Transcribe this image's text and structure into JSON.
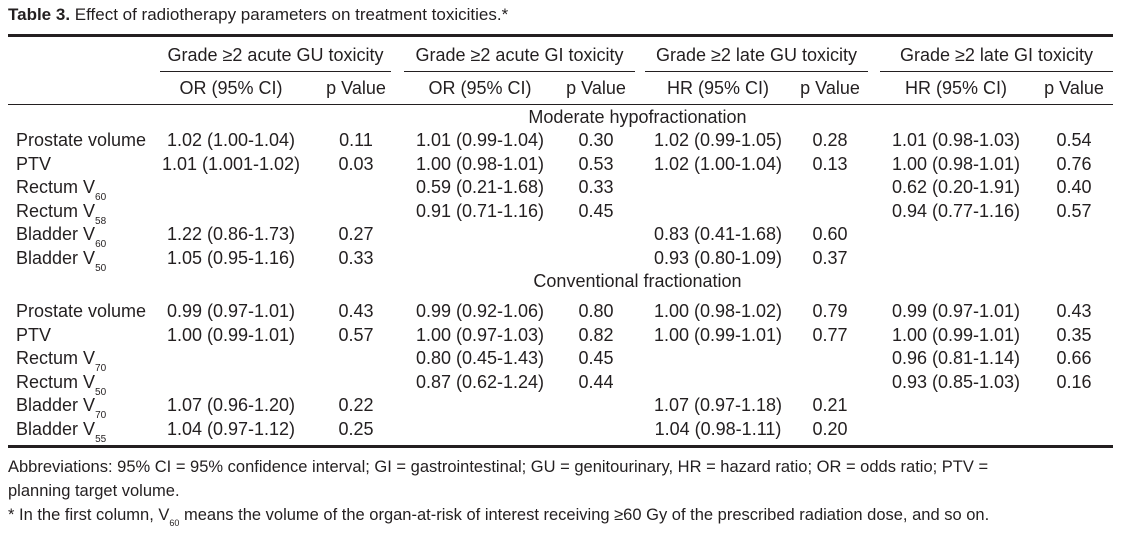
{
  "caption": {
    "label": "Table 3.",
    "text": "Effect of radiotherapy parameters on treatment toxicities.*"
  },
  "header": {
    "groups": [
      "Grade ≥2 acute GU toxicity",
      "Grade ≥2 acute GI toxicity",
      "Grade ≥2 late GU toxicity",
      "Grade ≥2 late GI toxicity"
    ],
    "subcols": [
      "OR (95% CI)",
      "p Value",
      "OR (95% CI)",
      "p Value",
      "HR (95% CI)",
      "p Value",
      "HR (95% CI)",
      "p Value"
    ]
  },
  "sections": [
    {
      "title": "Moderate hypofractionation",
      "rows": [
        {
          "name": "Prostate volume",
          "sub": "",
          "cells": [
            "1.02 (1.00-1.04)",
            "0.11",
            "1.01 (0.99-1.04)",
            "0.30",
            "1.02 (0.99-1.05)",
            "0.28",
            "1.01 (0.98-1.03)",
            "0.54"
          ]
        },
        {
          "name": "PTV",
          "sub": "",
          "cells": [
            "1.01 (1.001-1.02)",
            "0.03",
            "1.00 (0.98-1.01)",
            "0.53",
            "1.02 (1.00-1.04)",
            "0.13",
            "1.00 (0.98-1.01)",
            "0.76"
          ]
        },
        {
          "name": "Rectum V",
          "sub": "60",
          "cells": [
            "",
            "",
            "0.59 (0.21-1.68)",
            "0.33",
            "",
            "",
            "0.62 (0.20-1.91)",
            "0.40"
          ]
        },
        {
          "name": "Rectum V",
          "sub": "58",
          "cells": [
            "",
            "",
            "0.91 (0.71-1.16)",
            "0.45",
            "",
            "",
            "0.94 (0.77-1.16)",
            "0.57"
          ]
        },
        {
          "name": "Bladder V",
          "sub": "60",
          "cells": [
            "1.22 (0.86-1.73)",
            "0.27",
            "",
            "",
            "0.83 (0.41-1.68)",
            "0.60",
            "",
            ""
          ]
        },
        {
          "name": "Bladder V",
          "sub": "50",
          "cells": [
            "1.05 (0.95-1.16)",
            "0.33",
            "",
            "",
            "0.93 (0.80-1.09)",
            "0.37",
            "",
            ""
          ]
        }
      ]
    },
    {
      "title": "Conventional fractionation",
      "rows": [
        {
          "name": "Prostate volume",
          "sub": "",
          "cells": [
            "0.99 (0.97-1.01)",
            "0.43",
            "0.99 (0.92-1.06)",
            "0.80",
            "1.00 (0.98-1.02)",
            "0.79",
            "0.99 (0.97-1.01)",
            "0.43"
          ]
        },
        {
          "name": "PTV",
          "sub": "",
          "cells": [
            "1.00 (0.99-1.01)",
            "0.57",
            "1.00 (0.97-1.03)",
            "0.82",
            "1.00 (0.99-1.01)",
            "0.77",
            "1.00 (0.99-1.01)",
            "0.35"
          ]
        },
        {
          "name": "Rectum V",
          "sub": "70",
          "cells": [
            "",
            "",
            "0.80 (0.45-1.43)",
            "0.45",
            "",
            "",
            "0.96 (0.81-1.14)",
            "0.66"
          ]
        },
        {
          "name": "Rectum V",
          "sub": "50",
          "cells": [
            "",
            "",
            "0.87 (0.62-1.24)",
            "0.44",
            "",
            "",
            "0.93 (0.85-1.03)",
            "0.16"
          ]
        },
        {
          "name": "Bladder V",
          "sub": "70",
          "cells": [
            "1.07 (0.96-1.20)",
            "0.22",
            "",
            "",
            "1.07 (0.97-1.18)",
            "0.21",
            "",
            ""
          ]
        },
        {
          "name": "Bladder V",
          "sub": "55",
          "cells": [
            "1.04 (0.97-1.12)",
            "0.25",
            "",
            "",
            "1.04 (0.98-1.11)",
            "0.20",
            "",
            ""
          ]
        }
      ]
    }
  ],
  "footnotes": {
    "abbrev_line1": "Abbreviations: 95% CI = 95% confidence interval; GI = gastrointestinal; GU = genitourinary, HR = hazard ratio; OR = odds ratio; PTV =",
    "abbrev_line2": "planning target volume.",
    "star_pre": "* In the first column, V",
    "star_sub": "60",
    "star_post": " means the volume of the organ-at-risk of interest receiving ≥60 Gy of the prescribed radiation dose, and so on."
  }
}
